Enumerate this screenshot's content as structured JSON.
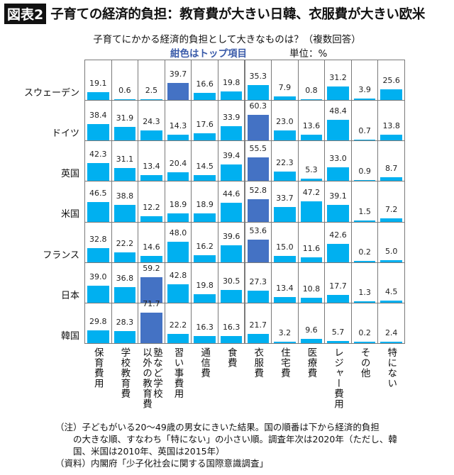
{
  "header": {
    "badge": "図表2",
    "title": "子育ての経済的負担：教育費が大きい日韓、衣服費が大きい欧米"
  },
  "chart_data": {
    "type": "bar",
    "title": "子育てにかかる経済的負担として大きなものは？（複数回答）",
    "legend_note": "紺色はトップ項目",
    "unit": "単位：%",
    "categories": [
      "保育費用",
      "学校教育費",
      "塾など学校\n以外の教育費",
      "習い事費用",
      "通信費",
      "食費",
      "衣服費",
      "住宅費",
      "医療費",
      "レジャー費用",
      "その他",
      "特にない"
    ],
    "series": [
      {
        "name": "スウェーデン",
        "values": [
          19.1,
          0.6,
          2.5,
          39.7,
          16.6,
          19.8,
          35.3,
          7.9,
          0.8,
          31.2,
          3.9,
          25.6
        ],
        "top_index": 3
      },
      {
        "name": "ドイツ",
        "values": [
          38.4,
          31.9,
          24.3,
          14.3,
          17.6,
          33.9,
          60.3,
          23.0,
          13.6,
          48.4,
          0.7,
          13.8
        ],
        "top_index": 6
      },
      {
        "name": "英国",
        "values": [
          42.3,
          31.1,
          13.4,
          20.4,
          14.5,
          39.4,
          55.5,
          22.3,
          5.3,
          33.0,
          0.9,
          8.7
        ],
        "top_index": 6
      },
      {
        "name": "米国",
        "values": [
          46.5,
          38.8,
          12.2,
          18.9,
          18.9,
          44.6,
          52.8,
          33.7,
          47.2,
          39.1,
          1.5,
          7.2
        ],
        "top_index": 6
      },
      {
        "name": "フランス",
        "values": [
          32.8,
          22.2,
          14.6,
          48.0,
          16.2,
          39.6,
          53.6,
          15.0,
          11.6,
          42.6,
          0.2,
          5.0
        ],
        "top_index": 6
      },
      {
        "name": "日本",
        "values": [
          39.0,
          36.8,
          59.2,
          42.8,
          19.8,
          30.5,
          27.3,
          13.4,
          10.8,
          17.7,
          1.3,
          4.5
        ],
        "top_index": 2
      },
      {
        "name": "韓国",
        "values": [
          29.8,
          28.3,
          71.7,
          22.2,
          16.3,
          16.3,
          21.7,
          3.2,
          9.6,
          5.7,
          0.2,
          2.4
        ],
        "top_index": 2
      }
    ],
    "colors": {
      "bar": "#00b0f0",
      "top": "#4472c4",
      "grid": "#7a7a7a"
    }
  },
  "notes": [
    "（注）子どもがいる20～49歳の男女にきいた結果。国の順番は下から経済的負担",
    "　　の大きな順、すなわち「特にない」の小さい順。調査年次は2020年（ただし、韓",
    "　　国、米国は2010年、英国は2015年）",
    "（資料）内閣府「少子化社会に関する国際意識調査」"
  ]
}
